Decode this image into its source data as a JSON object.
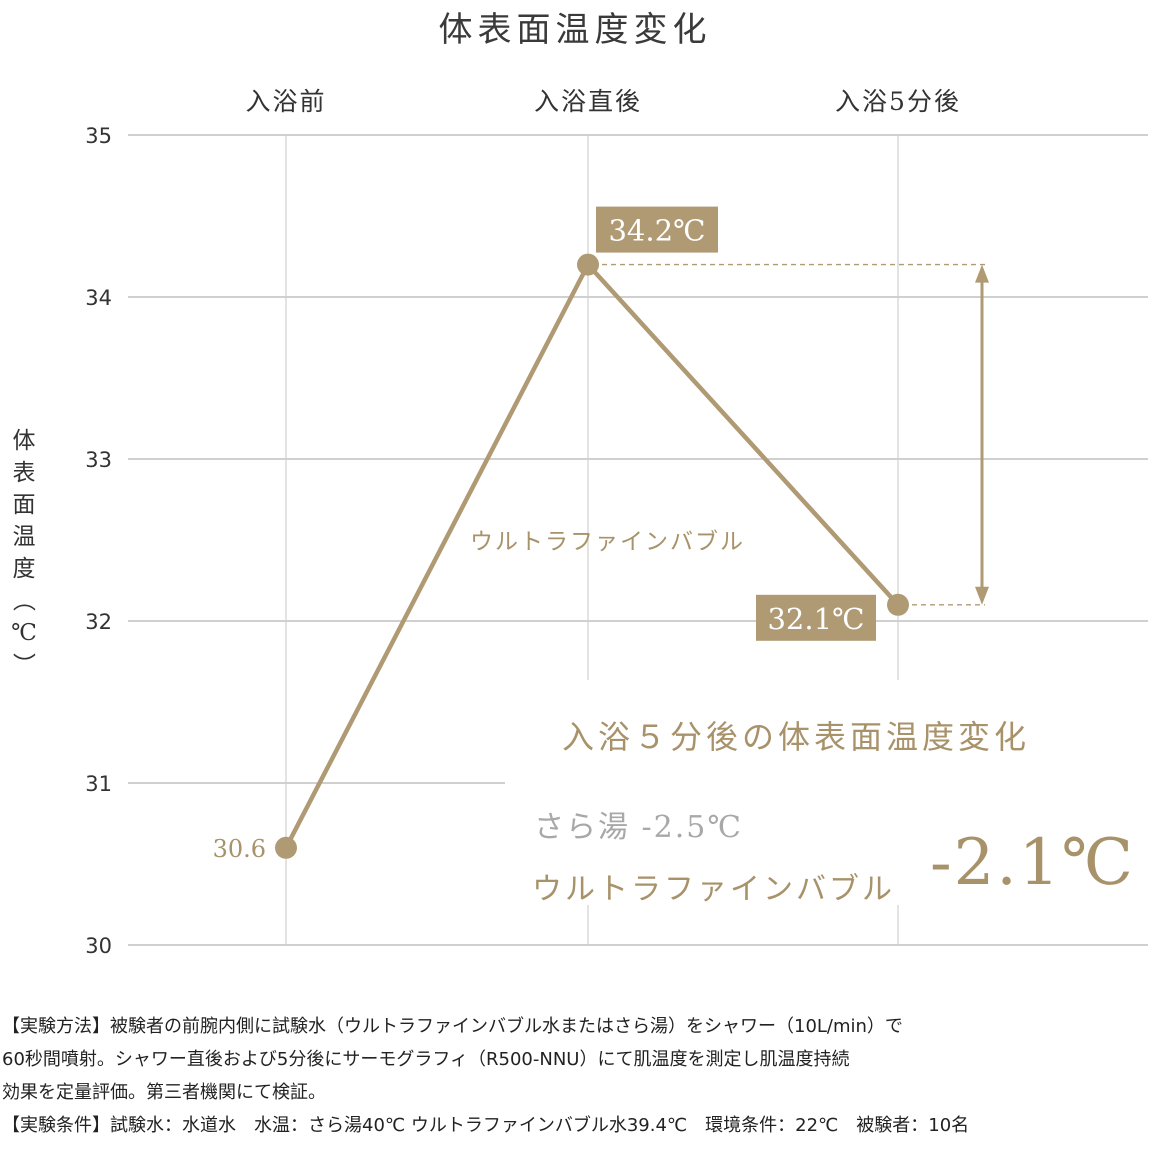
{
  "chart_data": {
    "type": "line",
    "title": "体表面温度変化",
    "categories": [
      "入浴前",
      "入浴直後",
      "入浴5分後"
    ],
    "ylabel": "体表面温度（℃）",
    "ylim": [
      30,
      35
    ],
    "yticks": [
      "35",
      "34",
      "33",
      "32",
      "31",
      "30"
    ],
    "series": [
      {
        "name": "ウルトラファインバブル",
        "values": [
          30.6,
          34.2,
          32.1
        ],
        "labels": [
          "30.6",
          "34.2℃",
          "32.1℃"
        ],
        "color": "#b09a74"
      }
    ],
    "grid": true
  },
  "summary": {
    "title": "入浴５分後の体表面温度変化",
    "plain_water": "さら湯 -2.5℃",
    "ufb_label": "ウルトラファインバブル",
    "ufb_value": "-2.1℃"
  },
  "notes": [
    "【実験方法】被験者の前腕内側に試験水（ウルトラファインバブル水またはさら湯）をシャワー（10L/min）で",
    "60秒間噴射。シャワー直後および5分後にサーモグラフィ（R500-NNU）にて肌温度を測定し肌温度持続",
    "効果を定量評価。第三者機関にて検証。",
    "【実験条件】試験水：水道水　水温：さら湯40℃ ウルトラファインバブル水39.4℃　環境条件：22℃　被験者：10名"
  ]
}
